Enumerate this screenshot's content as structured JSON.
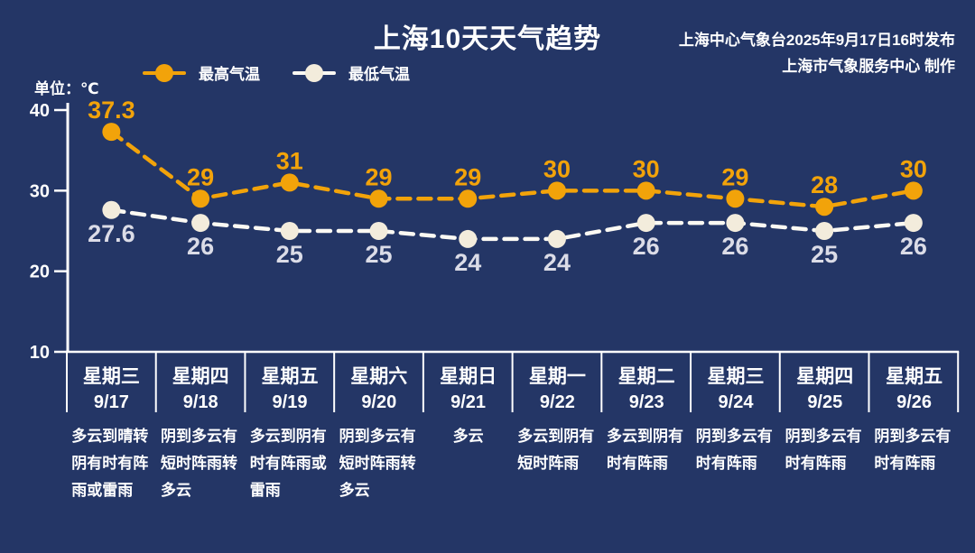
{
  "title": "上海10天天气趋势",
  "source": {
    "line1": "上海中心气象台2025年9月17日16时发布",
    "line2": "上海市气象服务中心 制作"
  },
  "unit_label": "单位：℃",
  "legend": {
    "high": "最高气温",
    "low": "最低气温"
  },
  "colors": {
    "background": "#243666",
    "high": "#F2A30A",
    "low_line": "#FBF9F3",
    "low_marker": "#F3ECDC",
    "low_label": "#DBDCE7",
    "axis": "#FFFFFF",
    "text": "#FFFFFF"
  },
  "chart_data": {
    "type": "line",
    "title": "上海10天天气趋势",
    "unit": "℃",
    "y_ticks": [
      40,
      30,
      20,
      10
    ],
    "ylim": [
      10,
      40
    ],
    "grid": false,
    "legend_position": "top-left",
    "legend": [
      "最高气温",
      "最低气温"
    ],
    "categories": [
      "9/17",
      "9/18",
      "9/19",
      "9/20",
      "9/21",
      "9/22",
      "9/23",
      "9/24",
      "9/25",
      "9/26"
    ],
    "series": [
      {
        "name": "最高气温",
        "values": [
          37.3,
          29,
          31,
          29,
          29,
          30,
          30,
          29,
          28,
          30
        ]
      },
      {
        "name": "最低气温",
        "values": [
          27.6,
          26,
          25,
          25,
          24,
          24,
          26,
          26,
          25,
          26
        ]
      }
    ],
    "days": [
      {
        "weekday": "星期三",
        "date": "9/17",
        "weather": "多云到晴转阴有时有阵雨或雷雨"
      },
      {
        "weekday": "星期四",
        "date": "9/18",
        "weather": "阴到多云有短时阵雨转多云"
      },
      {
        "weekday": "星期五",
        "date": "9/19",
        "weather": "多云到阴有时有阵雨或雷雨"
      },
      {
        "weekday": "星期六",
        "date": "9/20",
        "weather": "阴到多云有短时阵雨转多云"
      },
      {
        "weekday": "星期日",
        "date": "9/21",
        "weather": "多云"
      },
      {
        "weekday": "星期一",
        "date": "9/22",
        "weather": "多云到阴有短时阵雨"
      },
      {
        "weekday": "星期二",
        "date": "9/23",
        "weather": "多云到阴有时有阵雨"
      },
      {
        "weekday": "星期三",
        "date": "9/24",
        "weather": "阴到多云有时有阵雨"
      },
      {
        "weekday": "星期四",
        "date": "9/25",
        "weather": "阴到多云有时有阵雨"
      },
      {
        "weekday": "星期五",
        "date": "9/26",
        "weather": "阴到多云有时有阵雨"
      }
    ]
  }
}
